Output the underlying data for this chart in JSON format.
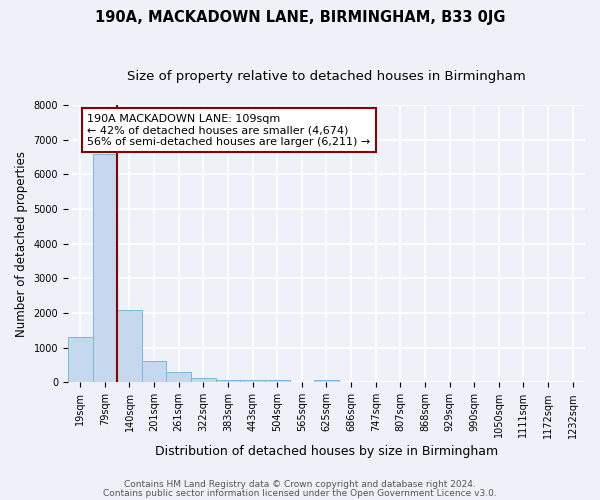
{
  "title": "190A, MACKADOWN LANE, BIRMINGHAM, B33 0JG",
  "subtitle": "Size of property relative to detached houses in Birmingham",
  "xlabel": "Distribution of detached houses by size in Birmingham",
  "ylabel": "Number of detached properties",
  "bar_labels": [
    "19sqm",
    "79sqm",
    "140sqm",
    "201sqm",
    "261sqm",
    "322sqm",
    "383sqm",
    "443sqm",
    "504sqm",
    "565sqm",
    "625sqm",
    "686sqm",
    "747sqm",
    "807sqm",
    "868sqm",
    "929sqm",
    "990sqm",
    "1050sqm",
    "1111sqm",
    "1172sqm",
    "1232sqm"
  ],
  "bar_values": [
    1300,
    6580,
    2100,
    620,
    290,
    130,
    80,
    60,
    80,
    0,
    80,
    0,
    0,
    0,
    0,
    0,
    0,
    0,
    0,
    0,
    0
  ],
  "bar_color": "#c5d8ed",
  "bar_edge_color": "#7ab8d9",
  "ylim": [
    0,
    8000
  ],
  "annotation_box_text_line1": "190A MACKADOWN LANE: 109sqm",
  "annotation_box_text_line2": "← 42% of detached houses are smaller (4,674)",
  "annotation_box_text_line3": "56% of semi-detached houses are larger (6,211) →",
  "annotation_box_color": "white",
  "annotation_box_edge_color": "#8b0000",
  "vline_color": "#8b0000",
  "vline_x_index": 1.5,
  "footer_line1": "Contains HM Land Registry data © Crown copyright and database right 2024.",
  "footer_line2": "Contains public sector information licensed under the Open Government Licence v3.0.",
  "background_color": "#eef2f8",
  "grid_color": "white",
  "title_fontsize": 10.5,
  "subtitle_fontsize": 9.5,
  "xlabel_fontsize": 9,
  "ylabel_fontsize": 8.5,
  "tick_fontsize": 7,
  "annotation_fontsize": 8,
  "footer_fontsize": 6.5
}
